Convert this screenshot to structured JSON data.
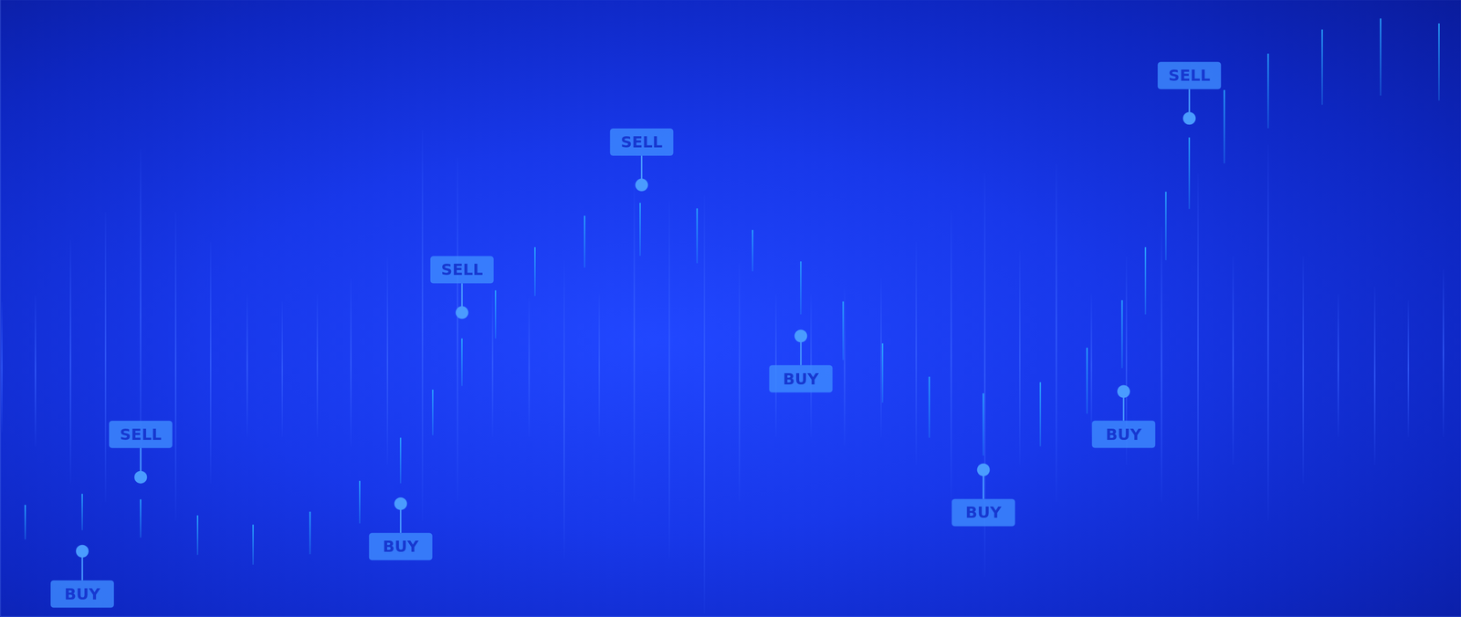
{
  "chart_data": {
    "type": "candlestick",
    "xlim": [
      0,
      100
    ],
    "ylim": [
      0,
      100
    ],
    "xticks": [
      0,
      2.5,
      5,
      7.5,
      10,
      12.5,
      15,
      17.5,
      20,
      22.5,
      25,
      27.5,
      30,
      32.5,
      35,
      37.5,
      40,
      42.5,
      45,
      47.5,
      50,
      52.5,
      55,
      57.5,
      60,
      62.5,
      65,
      67.5,
      70,
      72.5,
      75,
      77.5,
      80,
      82.5,
      85,
      87.5,
      90,
      92.5,
      95,
      97.5,
      100
    ],
    "yticks": [
      0,
      5,
      10,
      15,
      20,
      25,
      30,
      35,
      40,
      45,
      50,
      55,
      60,
      65,
      70,
      75,
      80,
      85,
      90,
      95,
      100
    ],
    "grid": true,
    "tick_labels": false,
    "series": [
      {
        "type": "candlestick",
        "color": "#2aa8ff",
        "x": [
          1.7,
          5.6,
          9.6,
          13.5,
          17.3,
          21.2,
          24.6,
          27.4,
          29.6,
          31.6,
          33.9,
          36.6,
          40.0,
          43.8,
          47.7,
          51.5,
          54.8,
          57.7,
          60.4,
          63.6,
          67.3,
          71.2,
          74.4,
          76.8,
          78.4,
          79.8,
          81.4,
          83.8,
          86.8,
          90.5,
          94.5,
          98.5
        ],
        "values": [
          [
            12.5,
            18.1
          ],
          [
            14.0,
            19.9
          ],
          [
            12.8,
            19.0
          ],
          [
            10.0,
            16.4
          ],
          [
            8.4,
            14.9
          ],
          [
            10.1,
            17.0
          ],
          [
            15.1,
            22.0
          ],
          [
            21.6,
            29.0
          ],
          [
            29.4,
            36.8
          ],
          [
            37.4,
            45.1
          ],
          [
            45.1,
            52.9
          ],
          [
            52.0,
            59.9
          ],
          [
            56.6,
            65.0
          ],
          [
            58.5,
            67.1
          ],
          [
            57.3,
            66.2
          ],
          [
            56.0,
            62.7
          ],
          [
            49.0,
            57.6
          ],
          [
            41.6,
            51.1
          ],
          [
            34.7,
            44.3
          ],
          [
            29.0,
            38.9
          ],
          [
            26.1,
            36.2
          ],
          [
            27.6,
            38.0
          ],
          [
            32.9,
            43.6
          ],
          [
            40.3,
            51.3
          ],
          [
            49.0,
            59.9
          ],
          [
            57.8,
            68.9
          ],
          [
            66.1,
            77.7
          ],
          [
            73.5,
            85.4
          ],
          [
            79.2,
            91.3
          ],
          [
            83.0,
            95.2
          ],
          [
            84.5,
            97.0
          ],
          [
            83.7,
            96.2
          ]
        ]
      },
      {
        "type": "bar",
        "color": "#3a64ff",
        "x": [
          0.1,
          2.4,
          4.8,
          7.2,
          9.6,
          12.0,
          14.4,
          16.9,
          19.3,
          21.7,
          24.0,
          26.5,
          28.9,
          31.3,
          33.7,
          36.2,
          38.6,
          41.0,
          43.4,
          45.8,
          48.2,
          50.6,
          53.1,
          55.5,
          57.8,
          60.3,
          62.7,
          65.1,
          67.4,
          69.8,
          72.3,
          74.7,
          77.1,
          79.5,
          82.0,
          84.4,
          86.8,
          89.2,
          91.6,
          94.1,
          96.4,
          98.8
        ],
        "values": [
          [
            29.9,
            51.0
          ],
          [
            27.6,
            52.0
          ],
          [
            21.6,
            61.1
          ],
          [
            18.6,
            65.6
          ],
          [
            21.6,
            75.9
          ],
          [
            15.5,
            65.6
          ],
          [
            21.6,
            60.8
          ],
          [
            29.1,
            52.3
          ],
          [
            29.1,
            51.1
          ],
          [
            29.1,
            52.3
          ],
          [
            27.6,
            54.8
          ],
          [
            24.6,
            58.2
          ],
          [
            15.5,
            78.9
          ],
          [
            18.6,
            74.4
          ],
          [
            29.1,
            53.2
          ],
          [
            29.1,
            51.7
          ],
          [
            9.5,
            57.8
          ],
          [
            29.1,
            52.3
          ],
          [
            18.6,
            70.4
          ],
          [
            9.5,
            67.4
          ],
          [
            0.5,
            68.3
          ],
          [
            18.6,
            57.3
          ],
          [
            29.1,
            52.3
          ],
          [
            29.1,
            52.3
          ],
          [
            27.6,
            53.2
          ],
          [
            29.1,
            54.8
          ],
          [
            24.6,
            60.8
          ],
          [
            18.6,
            65.9
          ],
          [
            6.5,
            71.9
          ],
          [
            24.6,
            59.3
          ],
          [
            18.6,
            73.5
          ],
          [
            29.1,
            52.3
          ],
          [
            24.6,
            58.4
          ],
          [
            18.6,
            63.2
          ],
          [
            15.5,
            71.9
          ],
          [
            24.6,
            58.4
          ],
          [
            15.5,
            76.5
          ],
          [
            21.6,
            58.4
          ],
          [
            29.1,
            52.3
          ],
          [
            24.6,
            53.5
          ],
          [
            29.1,
            51.3
          ],
          [
            29.1,
            56.3
          ]
        ]
      }
    ],
    "annotations": [
      {
        "text": "BUY",
        "x": 5.6,
        "y": 10.6
      },
      {
        "text": "SELL",
        "x": 9.6,
        "y": 22.6
      },
      {
        "text": "BUY",
        "x": 27.4,
        "y": 18.3
      },
      {
        "text": "SELL",
        "x": 31.6,
        "y": 49.3
      },
      {
        "text": "SELL",
        "x": 43.9,
        "y": 70.0
      },
      {
        "text": "BUY",
        "x": 54.8,
        "y": 45.5
      },
      {
        "text": "BUY",
        "x": 67.3,
        "y": 23.8
      },
      {
        "text": "BUY",
        "x": 76.9,
        "y": 36.5
      },
      {
        "text": "SELL",
        "x": 81.4,
        "y": 80.8
      }
    ]
  }
}
